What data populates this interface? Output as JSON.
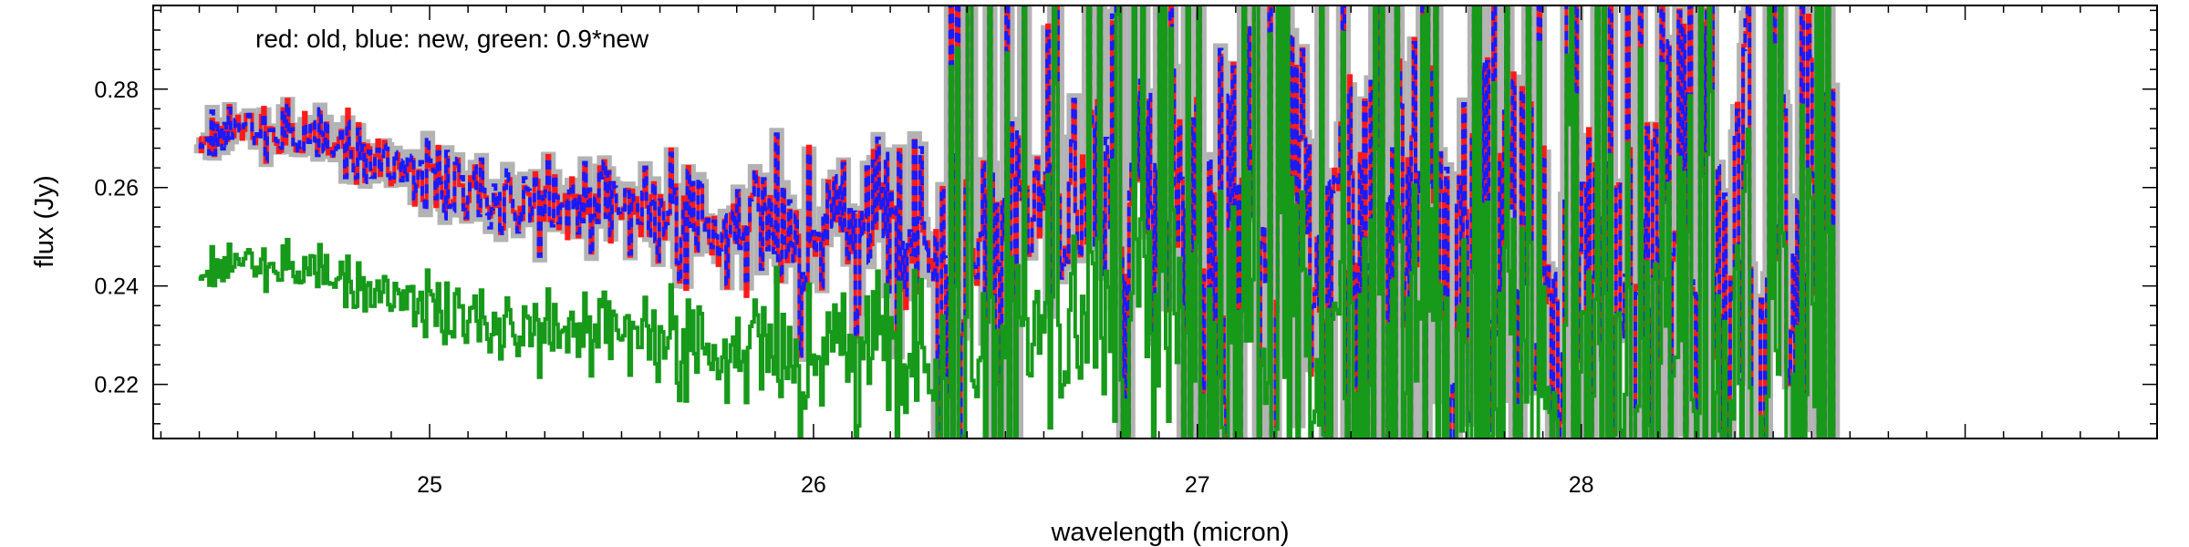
{
  "chart_data": {
    "type": "line",
    "title": "",
    "xlabel": "wavelength (micron)",
    "ylabel": "flux (Jy)",
    "xlim": [
      24.28,
      29.5
    ],
    "ylim": [
      0.209,
      0.297
    ],
    "xticks": [
      {
        "value": 25,
        "label": "25"
      },
      {
        "value": 26,
        "label": "26"
      },
      {
        "value": 27,
        "label": "27"
      },
      {
        "value": 28,
        "label": "28"
      }
    ],
    "yticks": [
      {
        "value": 0.22,
        "label": "0.22"
      },
      {
        "value": 0.24,
        "label": "0.24"
      },
      {
        "value": 0.26,
        "label": "0.26"
      },
      {
        "value": 0.28,
        "label": "0.28"
      }
    ],
    "annotation": "red: old, blue: new, green: 0.9*new",
    "grid": false,
    "series": [
      {
        "key": "uncertainty",
        "color": "#b3b3b3",
        "style": "thick-band"
      },
      {
        "key": "old",
        "color": "#ff1a1a",
        "style": "solid"
      },
      {
        "key": "new",
        "color": "#1a1aff",
        "style": "dashed"
      },
      {
        "key": "scaled",
        "color": "#17991a",
        "style": "solid"
      }
    ],
    "x_range_data": [
      24.4,
      28.66
    ],
    "envelope": [
      {
        "x": 24.4,
        "y": 0.271
      },
      {
        "x": 24.6,
        "y": 0.272
      },
      {
        "x": 24.8,
        "y": 0.268
      },
      {
        "x": 25.0,
        "y": 0.262
      },
      {
        "x": 25.2,
        "y": 0.258
      },
      {
        "x": 25.4,
        "y": 0.256
      },
      {
        "x": 25.6,
        "y": 0.255
      },
      {
        "x": 25.8,
        "y": 0.253
      },
      {
        "x": 26.0,
        "y": 0.25
      },
      {
        "x": 26.2,
        "y": 0.252
      },
      {
        "x": 26.4,
        "y": 0.25
      },
      {
        "x": 26.6,
        "y": 0.253
      },
      {
        "x": 26.8,
        "y": 0.255
      },
      {
        "x": 27.0,
        "y": 0.257
      },
      {
        "x": 27.2,
        "y": 0.258
      },
      {
        "x": 27.4,
        "y": 0.258
      },
      {
        "x": 27.6,
        "y": 0.257
      },
      {
        "x": 27.8,
        "y": 0.256
      },
      {
        "x": 28.0,
        "y": 0.255
      },
      {
        "x": 28.66,
        "y": 0.255
      }
    ]
  }
}
